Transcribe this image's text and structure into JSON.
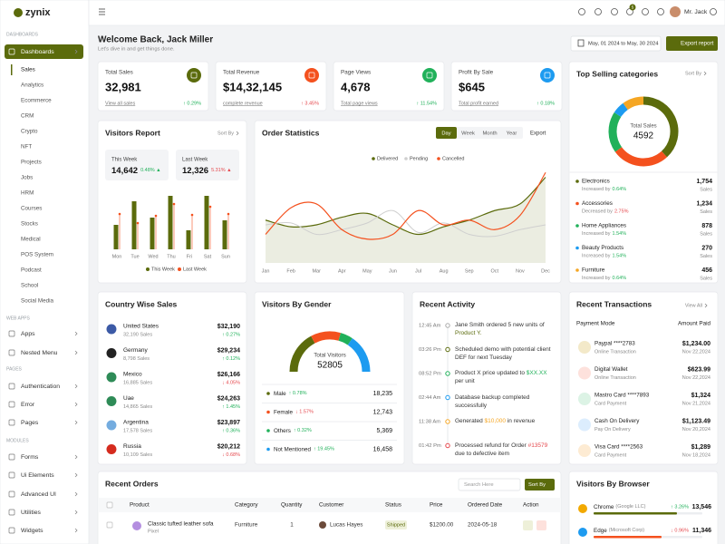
{
  "sidebar": {
    "logo": "zynix",
    "groups": [
      {
        "label": "DASHBOARDS",
        "items": [
          {
            "label": "Dashboards",
            "active": true,
            "children": [
              "Sales",
              "Analytics",
              "Ecommerce",
              "CRM",
              "Crypto",
              "NFT",
              "Projects",
              "Jobs",
              "HRM",
              "Courses",
              "Stocks",
              "Medical",
              "POS System",
              "Podcast",
              "School",
              "Social Media"
            ]
          }
        ]
      },
      {
        "label": "WEB APPS",
        "items": [
          {
            "label": "Apps"
          },
          {
            "label": "Nested Menu"
          }
        ]
      },
      {
        "label": "PAGES",
        "items": [
          {
            "label": "Authentication"
          },
          {
            "label": "Error"
          },
          {
            "label": "Pages"
          }
        ]
      },
      {
        "label": "MODULES",
        "items": [
          {
            "label": "Forms"
          },
          {
            "label": "Ui Elements"
          },
          {
            "label": "Advanced UI"
          },
          {
            "label": "Utilities"
          },
          {
            "label": "Widgets"
          }
        ]
      }
    ]
  },
  "header": {
    "user": "Mr. Jack",
    "notification_count": 5
  },
  "welcome": {
    "title": "Welcome Back, Jack Miller",
    "subtitle": "Let's dive in and get things done.",
    "date_range": "May, 01 2024 to May, 30 2024",
    "button": "Export report"
  },
  "stats": [
    {
      "title": "Total Sales",
      "value": "32,981",
      "link": "View all sales",
      "change": "↑ 0.29%",
      "trend": "up",
      "color": "#5b6b0c"
    },
    {
      "title": "Total Revenue",
      "value": "$14,32,145",
      "link": "complete revenue",
      "change": "↑ 3.45%",
      "trend": "down",
      "color": "#f4511e"
    },
    {
      "title": "Page Views",
      "value": "4,678",
      "link": "Total page views",
      "change": "↑ 11.54%",
      "trend": "up",
      "color": "#21b15a"
    },
    {
      "title": "Profit By Sale",
      "value": "$645",
      "link": "Total profit earned",
      "change": "↑ 0.18%",
      "trend": "up",
      "color": "#1d9bf0"
    }
  ],
  "visitors_report": {
    "title": "Visitors Report",
    "sort": "Sort By",
    "this_week": {
      "label": "This Week",
      "value": "14,642",
      "change": "0.48% ▲",
      "trend": "up"
    },
    "last_week": {
      "label": "Last Week",
      "value": "12,326",
      "change": "5.31% ▲",
      "trend": "down"
    },
    "chart": {
      "type": "bar",
      "categories": [
        "Mon",
        "Tue",
        "Wed",
        "Thu",
        "Fri",
        "Sat",
        "Sun"
      ],
      "series": [
        {
          "name": "This Week",
          "color": "#5b6b0c",
          "values": [
            27,
            53,
            35,
            59,
            21,
            59,
            32
          ]
        },
        {
          "name": "Last Week",
          "color": "#f4511e",
          "values": [
            39,
            29,
            37,
            50,
            38,
            47,
            39
          ]
        }
      ]
    }
  },
  "order_statistics": {
    "title": "Order Statistics",
    "tabs": [
      {
        "label": "Day",
        "active": true
      },
      {
        "label": "Week"
      },
      {
        "label": "Month"
      },
      {
        "label": "Year"
      }
    ],
    "export": "Export",
    "chart": {
      "type": "line",
      "categories": [
        "Jan",
        "Feb",
        "Mar",
        "Apr",
        "May",
        "Jun",
        "Jul",
        "Aug",
        "Sep",
        "Oct",
        "Nov",
        "Dec"
      ],
      "series": [
        {
          "name": "Delivered",
          "color": "#5b6b0c",
          "values": [
            45,
            38,
            40,
            48,
            52,
            40,
            30,
            38,
            45,
            55,
            62,
            90
          ]
        },
        {
          "name": "Pending",
          "color": "#cfcfcf",
          "values": [
            40,
            42,
            30,
            35,
            42,
            55,
            32,
            42,
            30,
            28,
            35,
            40
          ]
        },
        {
          "name": "Cancelled",
          "color": "#f4511e",
          "values": [
            30,
            58,
            62,
            35,
            25,
            30,
            55,
            40,
            45,
            35,
            50,
            95
          ]
        }
      ]
    }
  },
  "top_selling": {
    "title": "Top Selling categories",
    "sort": "Sort By",
    "center_label": "Total Sales",
    "center_value": 4592,
    "chart": {
      "type": "donut",
      "categories": [
        "Electronics",
        "Accessories",
        "Home Appliances",
        "Beauty Products",
        "Furniture"
      ],
      "values": [
        1754,
        1234,
        878,
        270,
        456
      ],
      "value_labels": [
        "1,754",
        "1,234",
        "878",
        "270",
        "456"
      ],
      "colors": [
        "#5b6b0c",
        "#f4511e",
        "#21b15a",
        "#1d9bf0",
        "#f5a623"
      ]
    },
    "items": [
      {
        "trend_text": "Increased by",
        "change": "0.64%",
        "trend": "up"
      },
      {
        "trend_text": "Decreased by",
        "change": "2.75%",
        "trend": "down"
      },
      {
        "trend_text": "Increased by",
        "change": "1.54%",
        "trend": "up"
      },
      {
        "trend_text": "Increased by",
        "change": "1.54%",
        "trend": "up"
      },
      {
        "trend_text": "Increased by",
        "change": "0.64%",
        "trend": "up"
      }
    ],
    "unit": "Sales"
  },
  "country_sales": {
    "title": "Country Wise Sales",
    "rows": [
      {
        "country": "United States",
        "sales": "32,190 Sales",
        "amount": "$32,190",
        "change": "↑ 0.27%",
        "trend": "up"
      },
      {
        "country": "Germany",
        "sales": "8,798 Sales",
        "amount": "$29,234",
        "change": "↑ 0.12%",
        "trend": "up"
      },
      {
        "country": "Mexico",
        "sales": "16,885 Sales",
        "amount": "$26,166",
        "change": "↓ 4.05%",
        "trend": "down"
      },
      {
        "country": "Uae",
        "sales": "14,865 Sales",
        "amount": "$24,263",
        "change": "↑ 1.45%",
        "trend": "up"
      },
      {
        "country": "Argentina",
        "sales": "17,578 Sales",
        "amount": "$23,897",
        "change": "↑ 0.36%",
        "trend": "up"
      },
      {
        "country": "Russia",
        "sales": "10,109 Sales",
        "amount": "$20,212",
        "change": "↓ 0.68%",
        "trend": "down"
      }
    ]
  },
  "visitors_by_gender": {
    "title": "Visitors By Gender",
    "center_label": "Total Visitors",
    "center_value": 52805,
    "chart": {
      "type": "gauge",
      "categories": [
        "Male",
        "Female",
        "Others",
        "Not Mentioned"
      ],
      "values": [
        18235,
        12743,
        5369,
        16458
      ],
      "value_labels": [
        "18,235",
        "12,743",
        "5,369",
        "16,458"
      ],
      "colors": [
        "#5b6b0c",
        "#f4511e",
        "#21b15a",
        "#1d9bf0"
      ]
    },
    "changes": [
      {
        "change": "↑ 0.78%",
        "trend": "up"
      },
      {
        "change": "↓ 1.57%",
        "trend": "down"
      },
      {
        "change": "↑ 0.32%",
        "trend": "up"
      },
      {
        "change": "↑ 19.45%",
        "trend": "up"
      }
    ]
  },
  "recent_activity": {
    "title": "Recent Activity",
    "items": [
      {
        "time": "12:45 Am",
        "text": [
          "Jane Smith ordered 5 new units of ",
          "Product Y."
        ]
      },
      {
        "time": "03:26 Pm",
        "text": [
          "Scheduled demo with potential client DEF for next Tuesday"
        ]
      },
      {
        "time": "08:52 Pm",
        "text": [
          "Product X price updated to ",
          "$XX.XX",
          " per unit"
        ]
      },
      {
        "time": "02:44 Am",
        "text": [
          "Database backup completed successfully"
        ]
      },
      {
        "time": "11:38 Am",
        "text": [
          "Generated ",
          "$10,000",
          " in revenue"
        ]
      },
      {
        "time": "01:42 Pm",
        "text": [
          "Processed refund for Order ",
          "#13579",
          " due to defective item"
        ]
      }
    ]
  },
  "recent_transactions": {
    "title": "Recent Transactions",
    "view_all": "View All",
    "headers": [
      "Payment Mode",
      "Amount Paid"
    ],
    "rows": [
      {
        "name": "Paypal ****2783",
        "type": "Online Transaction",
        "amount": "$1,234.00",
        "date": "Nov 22,2024"
      },
      {
        "name": "Digital Wallet",
        "type": "Online Transaction",
        "amount": "$623.99",
        "date": "Nov 22,2024"
      },
      {
        "name": "Mastro Card ****7893",
        "type": "Card Payment",
        "amount": "$1,324",
        "date": "Nov 21,2024"
      },
      {
        "name": "Cash On Delivery",
        "type": "Pay On Delivery",
        "amount": "$1,123.49",
        "date": "Nov 20,2024"
      },
      {
        "name": "Visa Card ****2563",
        "type": "Card Payment",
        "amount": "$1,289",
        "date": "Nov 18,2024"
      }
    ]
  },
  "recent_orders": {
    "title": "Recent Orders",
    "search": "Search Here",
    "sort": "Sort By",
    "headers": [
      "Product",
      "Category",
      "Quantity",
      "Customer",
      "Status",
      "Price",
      "Ordered Date",
      "Action"
    ],
    "rows": [
      {
        "product": "Classic tufted leather sofa",
        "variant": "Pixel",
        "category": "Furniture",
        "quantity": "1",
        "customer": "Lucas Hayes",
        "status": "Shipped",
        "price": "$1200.00",
        "date": "2024-05-18"
      }
    ]
  },
  "visitors_by_browser": {
    "title": "Visitors By Browser",
    "rows": [
      {
        "name": "Chrome",
        "company": "(Google LLC)",
        "change": "↑ 3.26%",
        "trend": "up",
        "value": "13,546"
      },
      {
        "name": "Edge",
        "company": "(Microsoft Corp)",
        "change": "↓ 0.96%",
        "trend": "down",
        "value": "11,346"
      }
    ]
  }
}
